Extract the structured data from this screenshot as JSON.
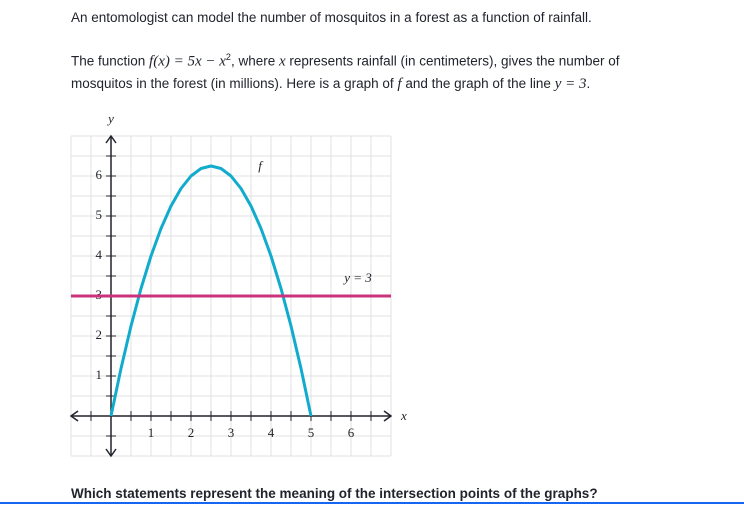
{
  "intro": "An entomologist can model the number of mosquitos in a forest as a function of rainfall.",
  "description": [
    "The function ",
    "f(x) = 5x − x",
    "2",
    ", where ",
    "x",
    " represents rainfall (in centimeters), gives the number of mosquitos in the forest (in millions). Here is a graph of ",
    "f",
    " and the graph of the line ",
    "y = 3",
    "."
  ],
  "question": "Which statements represent the meaning of the intersection points of the graphs?",
  "chart_data": {
    "type": "line",
    "x_label": "x",
    "y_label": "y",
    "xlim": [
      -1,
      7
    ],
    "ylim": [
      -1,
      7
    ],
    "xticks": [
      1,
      2,
      3,
      4,
      5,
      6
    ],
    "yticks": [
      1,
      2,
      3,
      4,
      5,
      6
    ],
    "xgrid": [
      -1,
      -0.5,
      0,
      0.5,
      1,
      1.5,
      2,
      2.5,
      3,
      3.5,
      4,
      4.5,
      5,
      5.5,
      6,
      6.5,
      7
    ],
    "ygrid": [
      -1,
      -0.5,
      0,
      0.5,
      1,
      1.5,
      2,
      2.5,
      3,
      3.5,
      4,
      4.5,
      5,
      5.5,
      6,
      6.5,
      7
    ],
    "series": [
      {
        "name": "f",
        "color": "#11accd",
        "x": [
          0,
          0.25,
          0.5,
          0.75,
          1,
          1.25,
          1.5,
          1.75,
          2,
          2.25,
          2.5,
          2.75,
          3,
          3.25,
          3.5,
          3.75,
          4,
          4.25,
          4.5,
          4.75,
          5
        ],
        "values": [
          0,
          1.1875,
          2.25,
          3.1875,
          4,
          4.6875,
          5.25,
          5.6875,
          6,
          6.1875,
          6.25,
          6.1875,
          6,
          5.6875,
          5.25,
          4.6875,
          4,
          3.1875,
          2.25,
          1.1875,
          0
        ]
      },
      {
        "name": "y = 3",
        "color": "#ca337c",
        "x": [
          -1,
          7
        ],
        "values": [
          3,
          3
        ]
      }
    ]
  }
}
